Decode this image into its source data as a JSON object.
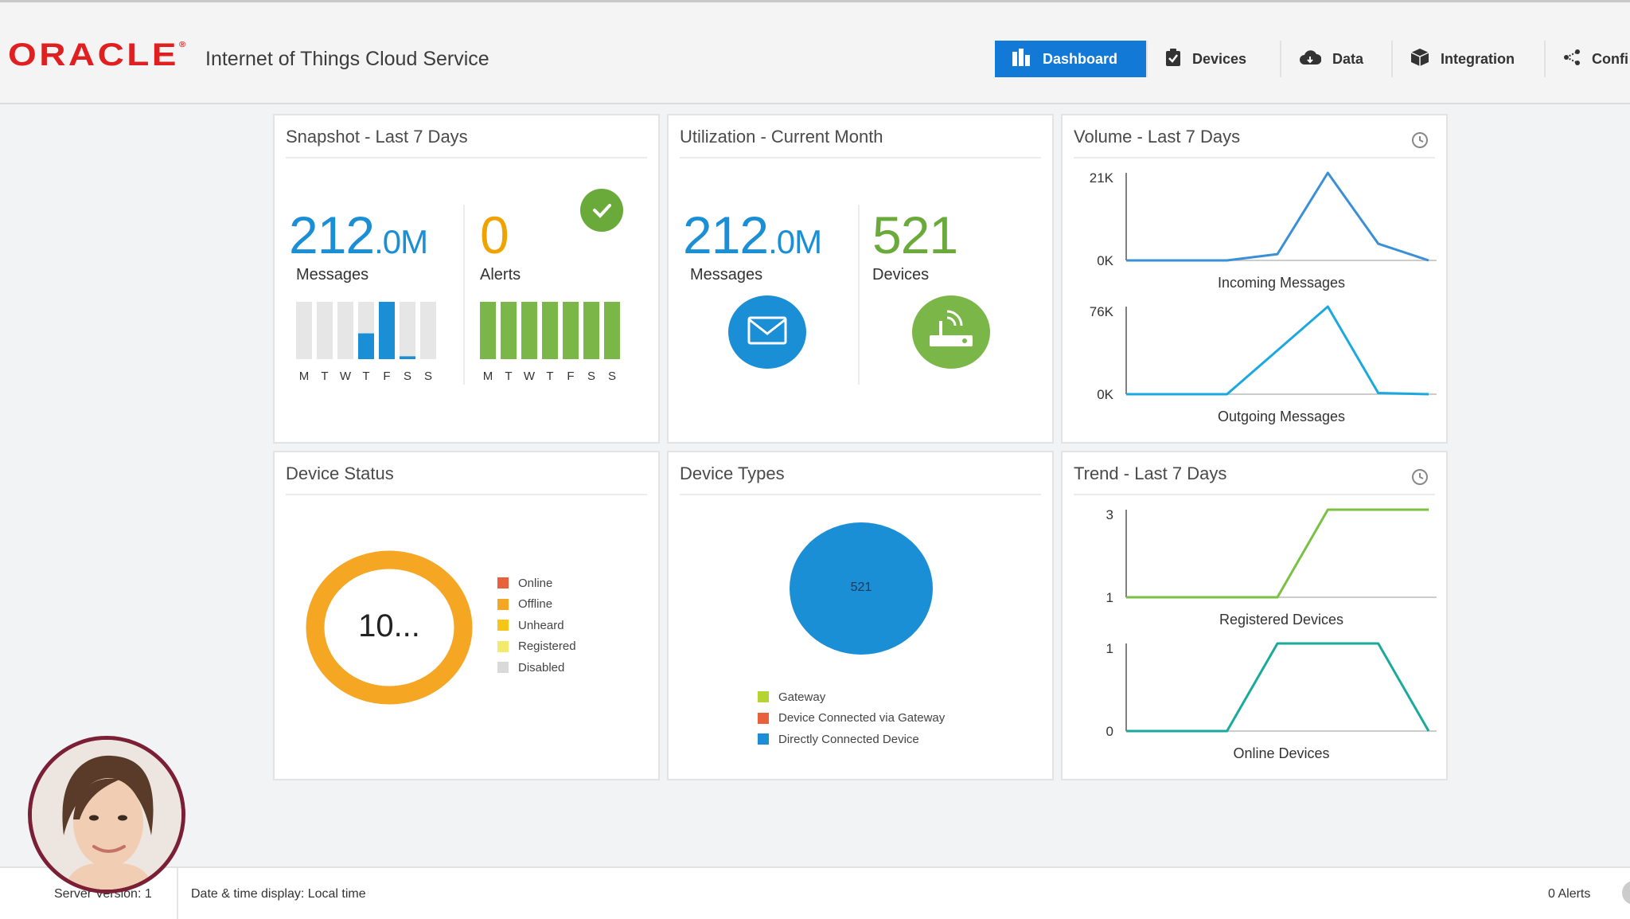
{
  "header": {
    "logo": "ORACLE",
    "app_title": "Internet of Things Cloud Service",
    "tabs": [
      {
        "label": "Dashboard",
        "icon": "bar-chart-icon",
        "active": true
      },
      {
        "label": "Devices",
        "icon": "clipboard-icon",
        "active": false
      },
      {
        "label": "Data",
        "icon": "cloud-icon",
        "active": false
      },
      {
        "label": "Integration",
        "icon": "cube-icon",
        "active": false
      },
      {
        "label": "Confi",
        "icon": "share-icon",
        "active": false
      }
    ]
  },
  "snapshot": {
    "title": "Snapshot - Last 7 Days",
    "messages_value": "212",
    "messages_unit": ".0M",
    "messages_label": "Messages",
    "alerts_value": "0",
    "alerts_label": "Alerts",
    "weekdays": "MTWTFSS",
    "messages_daily_fraction": [
      0,
      0,
      0,
      0.45,
      1.0,
      0.05,
      0
    ],
    "alerts_daily_fraction": [
      1,
      1,
      1,
      1,
      1,
      1,
      1
    ],
    "status_icon": "check-icon"
  },
  "utilization": {
    "title": "Utilization - Current Month",
    "messages_value": "212",
    "messages_unit": ".0M",
    "messages_label": "Messages",
    "devices_value": "521",
    "devices_label": "Devices",
    "messages_icon": "envelope-icon",
    "devices_icon": "router-icon"
  },
  "volume": {
    "title": "Volume - Last 7 Days",
    "incoming": {
      "label": "Incoming Messages",
      "y_max_label": "21K",
      "y_min_label": "0K"
    },
    "outgoing": {
      "label": "Outgoing Messages",
      "y_max_label": "76K",
      "y_min_label": "0K"
    }
  },
  "device_status": {
    "title": "Device Status",
    "center_text": "10...",
    "legend": [
      {
        "label": "Online",
        "color": "#e8603c"
      },
      {
        "label": "Offline",
        "color": "#f5a623"
      },
      {
        "label": "Unheard",
        "color": "#f5c518"
      },
      {
        "label": "Registered",
        "color": "#f3e96b"
      },
      {
        "label": "Disabled",
        "color": "#d9d9d9"
      }
    ]
  },
  "device_types": {
    "title": "Device Types",
    "pie_label": "521",
    "legend": [
      {
        "label": "Gateway",
        "color": "#b6d334"
      },
      {
        "label": "Device Connected via Gateway",
        "color": "#e8603c"
      },
      {
        "label": "Directly Connected Device",
        "color": "#1a8fd6"
      }
    ]
  },
  "trend": {
    "title": "Trend - Last 7 Days",
    "registered": {
      "label": "Registered Devices",
      "y_max_label": "3",
      "y_min_label": "1"
    },
    "online": {
      "label": "Online Devices",
      "y_max_label": "1",
      "y_min_label": "0"
    }
  },
  "footer": {
    "server_version": "Server Version: 1",
    "date_display": "Date & time display: Local time",
    "alerts": "0 Alerts"
  },
  "chart_data": [
    {
      "type": "line",
      "title": "Incoming Messages",
      "x": [
        1,
        2,
        3,
        4,
        5,
        6,
        7
      ],
      "y": [
        0,
        0,
        0,
        1500,
        21000,
        4000,
        0
      ],
      "ylim": [
        0,
        21000
      ],
      "color": "#3a8fd6"
    },
    {
      "type": "line",
      "title": "Outgoing Messages",
      "x": [
        1,
        2,
        3,
        4,
        5,
        6,
        7
      ],
      "y": [
        0,
        0,
        0,
        38000,
        76000,
        1000,
        0
      ],
      "ylim": [
        0,
        76000
      ],
      "color": "#1aa8e0"
    },
    {
      "type": "line",
      "title": "Registered Devices",
      "x": [
        1,
        2,
        3,
        4,
        5,
        6,
        7
      ],
      "y": [
        1,
        1,
        1,
        1,
        3,
        3,
        3
      ],
      "ylim": [
        1,
        3
      ],
      "color": "#7ac143"
    },
    {
      "type": "line",
      "title": "Online Devices",
      "x": [
        1,
        2,
        3,
        4,
        5,
        6,
        7
      ],
      "y": [
        0,
        0,
        0,
        1,
        1,
        1,
        0
      ],
      "ylim": [
        0,
        1
      ],
      "color": "#1aaa9a"
    },
    {
      "type": "pie",
      "title": "Device Types",
      "labels": [
        "Gateway",
        "Device Connected via Gateway",
        "Directly Connected Device"
      ],
      "values": [
        0,
        0,
        521
      ]
    }
  ]
}
